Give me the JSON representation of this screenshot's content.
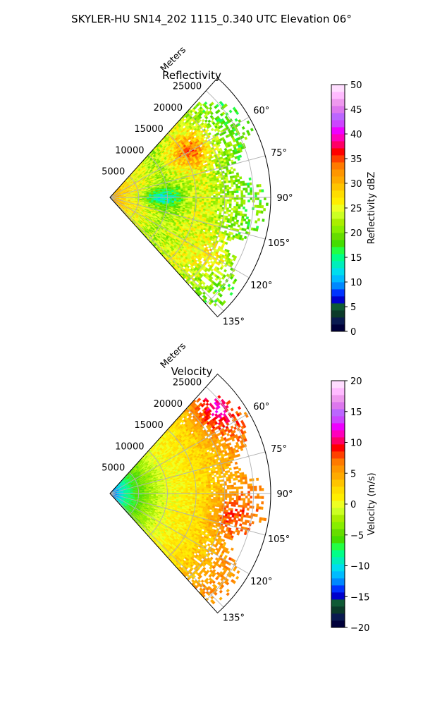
{
  "figure": {
    "suptitle": "SKYLER-HU  SN14_202  1115_0.340 UTC Elevation 06°"
  },
  "chart_data": [
    {
      "type": "heatmap",
      "projection": "polar-sector",
      "title": "Reflectivity",
      "range_label": "Meters",
      "range_ticks": [
        5000,
        10000,
        15000,
        20000,
        25000
      ],
      "range_tick_labels": [
        "5000",
        "10000",
        "15000",
        "20000",
        "25000"
      ],
      "range_max": 28000,
      "azimuth_range_deg": [
        42,
        138
      ],
      "azimuth_ticks": [
        60,
        75,
        90,
        105,
        120,
        135
      ],
      "azimuth_tick_labels": [
        "60°",
        "75°",
        "90°",
        "105°",
        "120°",
        "135°"
      ],
      "grid": true,
      "colorbar": {
        "label": "Reflectivity dBZ",
        "vmin": 0,
        "vmax": 50,
        "ticks": [
          0,
          5,
          10,
          15,
          20,
          25,
          30,
          35,
          40,
          45,
          50
        ],
        "tick_labels": [
          "0",
          "5",
          "10",
          "15",
          "20",
          "25",
          "30",
          "35",
          "40",
          "45",
          "50"
        ],
        "colors": [
          "#00003a",
          "#0a1a50",
          "#0b3a2a",
          "#0f5a35",
          "#0000cc",
          "#0033ff",
          "#0088ff",
          "#00bbff",
          "#00ddee",
          "#00eebb",
          "#00ff88",
          "#22ff44",
          "#44dd00",
          "#66dd00",
          "#88ee00",
          "#aaee00",
          "#ccff22",
          "#eeff22",
          "#ffee00",
          "#ffdd00",
          "#ffc400",
          "#ffaa00",
          "#ff9600",
          "#ff7a00",
          "#ff4000",
          "#ff0000",
          "#ff0066",
          "#ff00bb",
          "#ee00ff",
          "#cc44ff",
          "#bb66ff",
          "#dd77ee",
          "#ee99ee",
          "#ffbbff",
          "#ffddff"
        ]
      },
      "typical_values_by_range": [
        {
          "range_m": 1000,
          "dbz": 30
        },
        {
          "range_m": 5000,
          "dbz": 26
        },
        {
          "range_m": 10000,
          "dbz": 22
        },
        {
          "range_m": 16000,
          "dbz": 25
        },
        {
          "range_m": 20000,
          "dbz": 22
        },
        {
          "range_m": 24000,
          "dbz": 19
        }
      ],
      "features": [
        {
          "azimuth_deg": 60,
          "range_m": 16000,
          "dbz": 33
        },
        {
          "azimuth_deg": 90,
          "range_m": 9000,
          "dbz": 13
        },
        {
          "azimuth_deg": 120,
          "range_m": 20000,
          "dbz": 27
        }
      ]
    },
    {
      "type": "heatmap",
      "projection": "polar-sector",
      "title": "Velocity",
      "range_label": "Meters",
      "range_ticks": [
        5000,
        10000,
        15000,
        20000,
        25000
      ],
      "range_tick_labels": [
        "5000",
        "10000",
        "15000",
        "20000",
        "25000"
      ],
      "range_max": 28000,
      "azimuth_range_deg": [
        42,
        138
      ],
      "azimuth_ticks": [
        60,
        75,
        90,
        105,
        120,
        135
      ],
      "azimuth_tick_labels": [
        "60°",
        "75°",
        "90°",
        "105°",
        "120°",
        "135°"
      ],
      "grid": true,
      "colorbar": {
        "label": "Velocity (m/s)",
        "vmin": -20,
        "vmax": 20,
        "ticks": [
          -20,
          -15,
          -10,
          -5,
          0,
          5,
          10,
          15,
          20
        ],
        "tick_labels": [
          "−20",
          "−15",
          "−10",
          "−5",
          "0",
          "5",
          "10",
          "15",
          "20"
        ],
        "colors": [
          "#00003a",
          "#0a1a50",
          "#0b3a2a",
          "#0f5a35",
          "#0000cc",
          "#0033ff",
          "#0088ff",
          "#00bbff",
          "#00ddee",
          "#00eebb",
          "#00ff88",
          "#22ff44",
          "#44dd00",
          "#66dd00",
          "#88ee00",
          "#aaee00",
          "#ccff22",
          "#eeff22",
          "#ffee00",
          "#ffdd00",
          "#ffc400",
          "#ffaa00",
          "#ff9600",
          "#ff7a00",
          "#ff4000",
          "#ff0000",
          "#ff0066",
          "#ff00bb",
          "#ee00ff",
          "#cc44ff",
          "#bb66ff",
          "#dd77ee",
          "#ee99ee",
          "#ffbbff",
          "#ffddff"
        ]
      },
      "typical_values_by_range": [
        {
          "range_m": 1000,
          "ms": -12
        },
        {
          "range_m": 3000,
          "ms": -8
        },
        {
          "range_m": 6000,
          "ms": -4
        },
        {
          "range_m": 10000,
          "ms": 0
        },
        {
          "range_m": 16000,
          "ms": 2
        },
        {
          "range_m": 20000,
          "ms": 4
        },
        {
          "range_m": 24000,
          "ms": 6
        }
      ],
      "features": [
        {
          "azimuth_deg": 52,
          "range_m": 24000,
          "ms": 11
        },
        {
          "azimuth_deg": 100,
          "range_m": 22000,
          "ms": 8
        }
      ]
    }
  ]
}
